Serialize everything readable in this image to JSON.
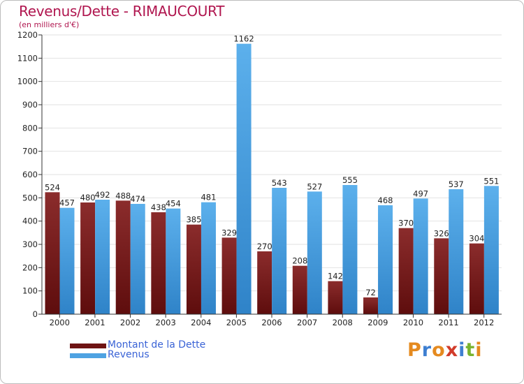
{
  "title": "Revenus/Dette - RIMAUCOURT",
  "subtitle": "(en milliers d'€)",
  "legend": [
    {
      "label": "Montant de la Dette",
      "color": "#6e1414"
    },
    {
      "label": "Revenus",
      "color": "#4ea2e2"
    }
  ],
  "logo": {
    "text": "Proxiti",
    "letters": [
      "P",
      "r",
      "o",
      "x",
      "i",
      "t",
      "i"
    ],
    "colors": [
      "#e58a1f",
      "#3e7fd1",
      "#e58a1f",
      "#d13b2a",
      "#3e7fd1",
      "#79b32f",
      "#e58a1f"
    ]
  },
  "chart_data": {
    "type": "bar",
    "title": "Revenus/Dette - RIMAUCOURT",
    "ylabel": "(en milliers d'€)",
    "xlabel": "",
    "categories": [
      "2000",
      "2001",
      "2002",
      "2003",
      "2004",
      "2005",
      "2006",
      "2007",
      "2008",
      "2009",
      "2010",
      "2011",
      "2012"
    ],
    "series": [
      {
        "name": "Montant de la Dette",
        "color": "#6e1414",
        "values": [
          524,
          480,
          488,
          438,
          385,
          329,
          270,
          208,
          142,
          72,
          370,
          326,
          304
        ]
      },
      {
        "name": "Revenus",
        "color": "#4ea2e2",
        "values": [
          457,
          492,
          474,
          454,
          481,
          1162,
          543,
          527,
          555,
          468,
          497,
          537,
          551
        ]
      }
    ],
    "ylim": [
      0,
      1200
    ],
    "yticks": [
      "0",
      "100",
      "200",
      "300",
      "400",
      "500",
      "600",
      "700",
      "800",
      "900",
      "1000",
      "1100",
      "1200"
    ],
    "grid": true
  }
}
